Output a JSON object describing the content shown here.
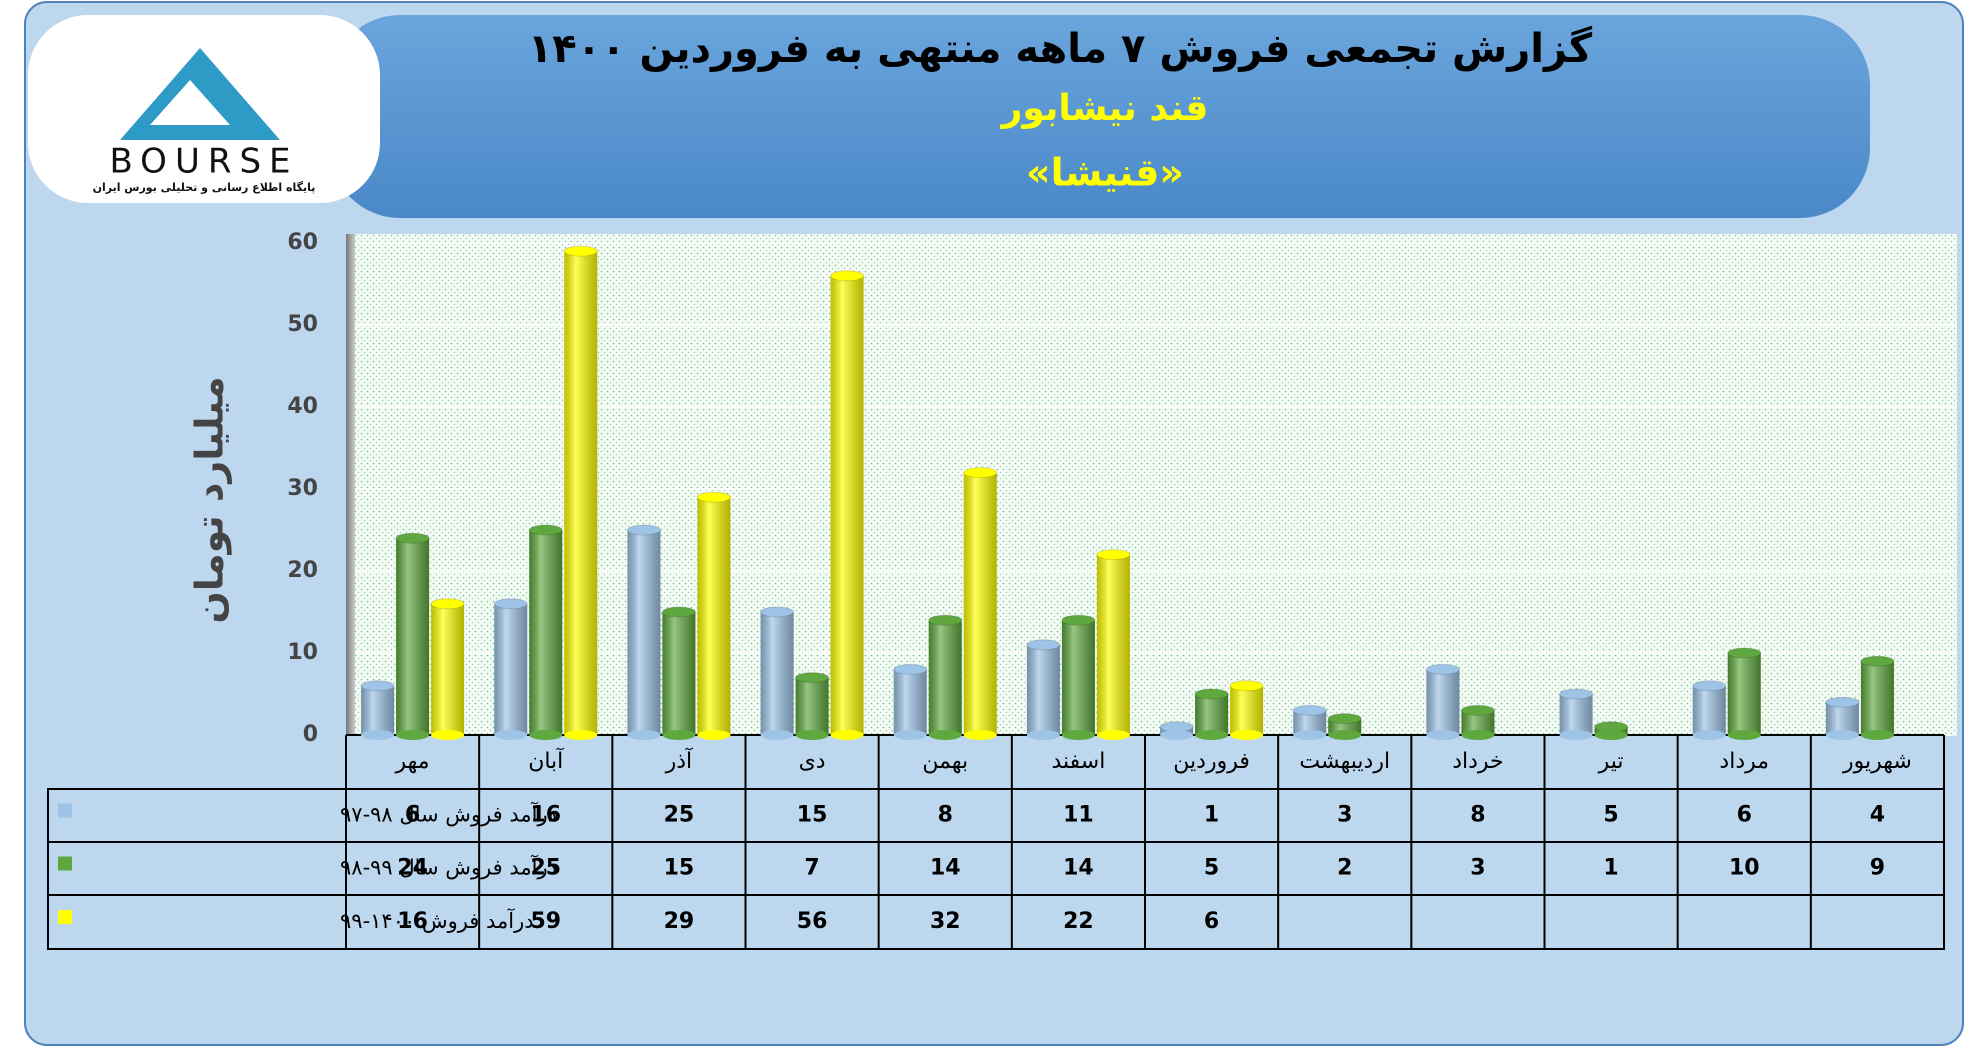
{
  "logo": {
    "text": "BOURSE",
    "tagline": "پایگاه اطلاع رسانی و تحلیلی بورس ایران"
  },
  "chart_data": {
    "type": "bar",
    "title": "گزارش تجمعی فروش ۷ ماهه منتهی به فروردین ۱۴۰۰",
    "subtitle": "قند نیشابور",
    "symbol": "«قنیشا»",
    "y_label": "میلیارد تومان",
    "categories": [
      "مهر",
      "آبان",
      "آذر",
      "دی",
      "بهمن",
      "اسفند",
      "فروردین",
      "اردیبهشت",
      "خرداد",
      "تیر",
      "مرداد",
      "شهریور"
    ],
    "series": [
      {
        "name": "درآمد فروش سال ۹۸-۹۷",
        "color": "#9dc3e6",
        "values": [
          6,
          16,
          25,
          15,
          8,
          11,
          1,
          3,
          8,
          5,
          6,
          4
        ]
      },
      {
        "name": "درآمد فروش سال ۹۹-۹۸",
        "color": "#5fa83f",
        "values": [
          24,
          25,
          15,
          7,
          14,
          14,
          5,
          2,
          3,
          1,
          10,
          9
        ]
      },
      {
        "name": "درآمد فروش ۱۴۰۰-۹۹",
        "color": "#ffff00",
        "values": [
          16,
          59,
          29,
          56,
          32,
          22,
          6,
          null,
          null,
          null,
          null,
          null
        ]
      }
    ],
    "ylim": [
      0,
      60
    ],
    "yticks": [
      0,
      10,
      20,
      30,
      40,
      50,
      60
    ],
    "grid": true
  }
}
